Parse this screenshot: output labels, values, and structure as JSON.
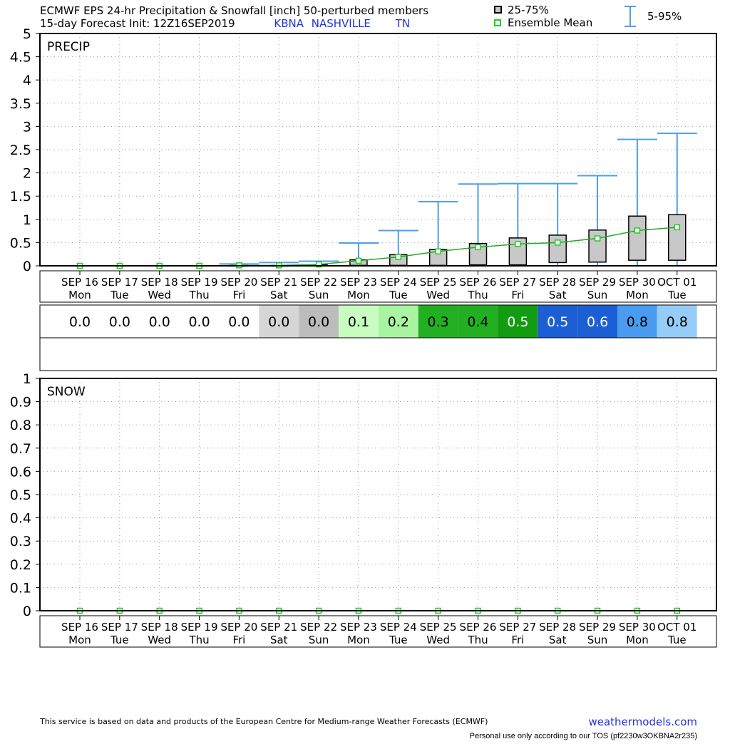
{
  "header": {
    "line1": "ECMWF EPS 24-hr Precipitation & Snowfall [inch]  50-perturbed members",
    "line2_prefix": "15-day Forecast Init: 12Z16SEP2019",
    "station_id": "KBNA",
    "station_name": "NASHVILLE",
    "state": "TN",
    "legend_box": "25-75%",
    "legend_mean": "Ensemble Mean",
    "legend_whisker": "5-95%"
  },
  "colors": {
    "whisker": "#4f9fe8",
    "box_fill": "#c8c8c8",
    "mean_line": "#22aa22",
    "mean_marker": "#22cc22"
  },
  "chart_data": [
    {
      "type": "box",
      "panel_label": "PRECIP",
      "categories": [
        "SEP 16",
        "SEP 17",
        "SEP 18",
        "SEP 19",
        "SEP 20",
        "SEP 21",
        "SEP 22",
        "SEP 23",
        "SEP 24",
        "SEP 25",
        "SEP 26",
        "SEP 27",
        "SEP 28",
        "SEP 29",
        "SEP 30",
        "OCT 01"
      ],
      "weekdays": [
        "Mon",
        "Tue",
        "Wed",
        "Thu",
        "Fri",
        "Sat",
        "Sun",
        "Mon",
        "Tue",
        "Wed",
        "Thu",
        "Fri",
        "Sat",
        "Sun",
        "Mon",
        "Tue"
      ],
      "ylim": [
        0,
        5
      ],
      "yticks": [
        "0",
        "0.5",
        "1",
        "1.5",
        "2",
        "2.5",
        "3",
        "3.5",
        "4",
        "4.5",
        "5"
      ],
      "p5": [
        0,
        0,
        0,
        0,
        0,
        0,
        0,
        0,
        0,
        0,
        0,
        0,
        0,
        0,
        0,
        0
      ],
      "p25": [
        0,
        0,
        0,
        0,
        0,
        0,
        0,
        0.01,
        0.01,
        0.01,
        0.02,
        0.02,
        0.07,
        0.08,
        0.12,
        0.12
      ],
      "p75": [
        0,
        0,
        0,
        0,
        0.01,
        0.01,
        0.02,
        0.13,
        0.24,
        0.35,
        0.48,
        0.6,
        0.66,
        0.77,
        1.07,
        1.1
      ],
      "p95": [
        0,
        0,
        0,
        0,
        0.04,
        0.07,
        0.1,
        0.49,
        0.76,
        1.38,
        1.76,
        1.77,
        1.77,
        1.94,
        2.72,
        2.85
      ],
      "mean": [
        0,
        0,
        0,
        0,
        0.01,
        0.01,
        0.03,
        0.11,
        0.19,
        0.31,
        0.4,
        0.47,
        0.5,
        0.59,
        0.76,
        0.83
      ],
      "grid": true
    },
    {
      "type": "table",
      "values": [
        "0.0",
        "0.0",
        "0.0",
        "0.0",
        "0.0",
        "0.0",
        "0.0",
        "0.1",
        "0.2",
        "0.3",
        "0.4",
        "0.5",
        "0.5",
        "0.6",
        "0.8",
        "0.8"
      ],
      "cell_colors": [
        "#ffffff",
        "#ffffff",
        "#ffffff",
        "#ffffff",
        "#ffffff",
        "#d6d6d6",
        "#bcbcbc",
        "#c8fcc0",
        "#a8f4a0",
        "#22b022",
        "#22b022",
        "#129c12",
        "#1c5fd4",
        "#1c5fd4",
        "#4a9cf0",
        "#96ccf8"
      ],
      "text_colors": [
        "#000000",
        "#000000",
        "#000000",
        "#000000",
        "#000000",
        "#000000",
        "#000000",
        "#000000",
        "#000000",
        "#000000",
        "#000000",
        "#ffffff",
        "#ffffff",
        "#ffffff",
        "#000000",
        "#000000"
      ]
    },
    {
      "type": "box",
      "panel_label": "SNOW",
      "categories": [
        "SEP 16",
        "SEP 17",
        "SEP 18",
        "SEP 19",
        "SEP 20",
        "SEP 21",
        "SEP 22",
        "SEP 23",
        "SEP 24",
        "SEP 25",
        "SEP 26",
        "SEP 27",
        "SEP 28",
        "SEP 29",
        "SEP 30",
        "OCT 01"
      ],
      "weekdays": [
        "Mon",
        "Tue",
        "Wed",
        "Thu",
        "Fri",
        "Sat",
        "Sun",
        "Mon",
        "Tue",
        "Wed",
        "Thu",
        "Fri",
        "Sat",
        "Sun",
        "Mon",
        "Tue"
      ],
      "ylim": [
        0,
        1
      ],
      "yticks": [
        "0",
        "0.1",
        "0.2",
        "0.3",
        "0.4",
        "0.5",
        "0.6",
        "0.7",
        "0.8",
        "0.9",
        "1"
      ],
      "mean": [
        0,
        0,
        0,
        0,
        0,
        0,
        0,
        0,
        0,
        0,
        0,
        0,
        0,
        0,
        0,
        0
      ],
      "grid": true
    }
  ],
  "footer": {
    "disclaimer": "This service is based on data and products of the European Centre for Medium-range Weather Forecasts (ECMWF)",
    "site": "weathermodels.com",
    "tos": "Personal use only according to our TOS (pf2230w3OKBNA2r235)"
  }
}
